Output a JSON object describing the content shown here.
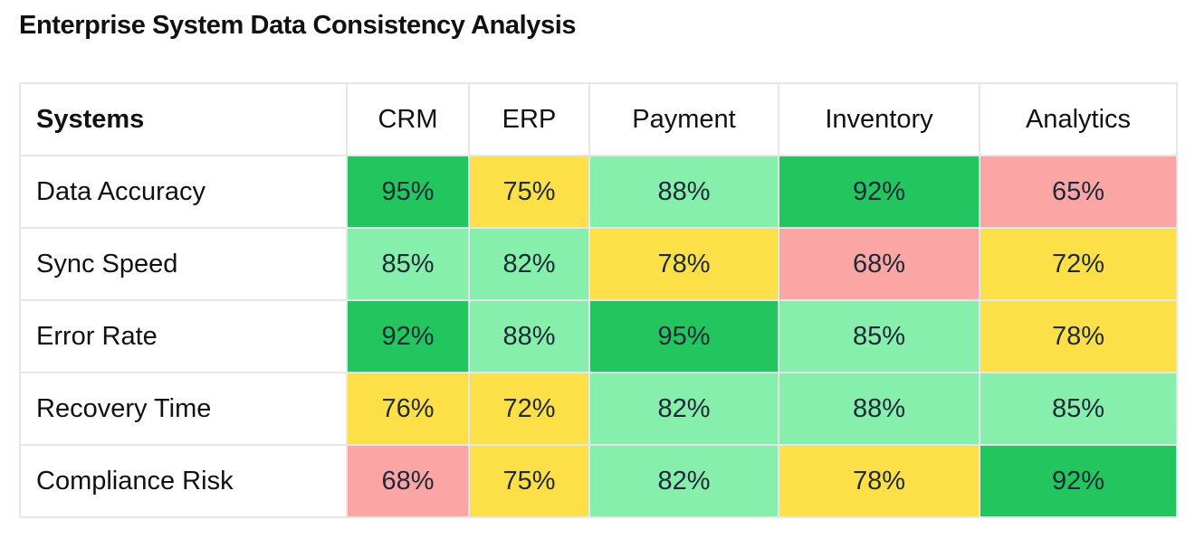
{
  "page": {
    "title": "Enterprise System Data Consistency Analysis"
  },
  "colors": {
    "high": "#22c55e",
    "good": "#86efac",
    "medium": "#fde047",
    "low": "#fca5a5"
  },
  "chart_data": {
    "type": "heatmap",
    "title": "Enterprise System Data Consistency Analysis",
    "corner_label": "Systems",
    "columns": [
      "CRM",
      "ERP",
      "Payment",
      "Inventory",
      "Analytics"
    ],
    "rows": [
      "Data Accuracy",
      "Sync Speed",
      "Error Rate",
      "Recovery Time",
      "Compliance Risk"
    ],
    "value_suffix": "%",
    "values": [
      [
        95,
        75,
        88,
        92,
        65
      ],
      [
        85,
        82,
        78,
        68,
        72
      ],
      [
        92,
        88,
        95,
        85,
        78
      ],
      [
        76,
        72,
        82,
        88,
        85
      ],
      [
        68,
        75,
        82,
        78,
        92
      ]
    ],
    "color_scale": [
      {
        "min": 90,
        "color": "#22c55e"
      },
      {
        "min": 80,
        "color": "#86efac"
      },
      {
        "min": 70,
        "color": "#fde047"
      },
      {
        "min": 0,
        "color": "#fca5a5"
      }
    ]
  }
}
